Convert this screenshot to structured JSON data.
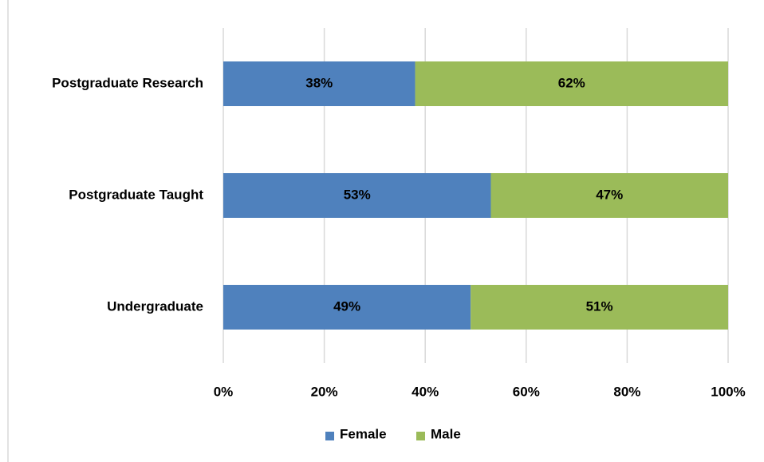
{
  "chart_data": {
    "type": "stacked-bar-horizontal",
    "categories": [
      "Postgraduate Research",
      "Postgraduate Taught",
      "Undergraduate"
    ],
    "series": [
      {
        "name": "Female",
        "color": "#4f81bd",
        "values": [
          38,
          53,
          49
        ],
        "value_labels": [
          "38%",
          "53%",
          "49%"
        ]
      },
      {
        "name": "Male",
        "color": "#9bbb59",
        "values": [
          62,
          47,
          51
        ],
        "value_labels": [
          "62%",
          "47%",
          "51%"
        ]
      }
    ],
    "xlim": [
      0,
      100
    ],
    "xticks": [
      {
        "value": 0,
        "label": "0%"
      },
      {
        "value": 20,
        "label": "20%"
      },
      {
        "value": 40,
        "label": "40%"
      },
      {
        "value": 60,
        "label": "60%"
      },
      {
        "value": 80,
        "label": "80%"
      },
      {
        "value": 100,
        "label": "100%"
      }
    ],
    "grid": true,
    "legend": "bottom"
  }
}
